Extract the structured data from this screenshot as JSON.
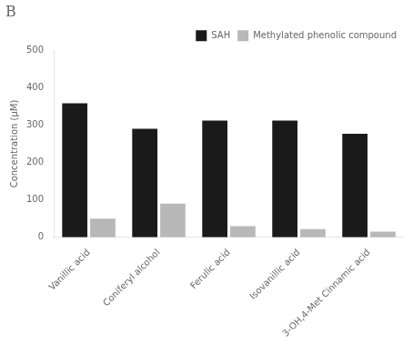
{
  "chart_data": {
    "type": "bar",
    "title": "B",
    "categories": [
      "Vanillic acid",
      "Coniferyl alcohol",
      "Ferulic acid",
      "Isovanillic acid",
      "3-OH,4-Met Cinnamic acid"
    ],
    "series": [
      {
        "name": "SAH",
        "color": "#1a1a1a",
        "values": [
          358,
          290,
          312,
          312,
          277
        ]
      },
      {
        "name": "Methylated phenolic compound",
        "color": "#b8b8b8",
        "values": [
          50,
          90,
          30,
          22,
          15
        ]
      }
    ],
    "ylabel": "Concentration (μM)",
    "ylim": [
      0,
      500
    ],
    "yticks": [
      0,
      100,
      200,
      300,
      400,
      500
    ],
    "grid": false,
    "legend": "upper right"
  }
}
